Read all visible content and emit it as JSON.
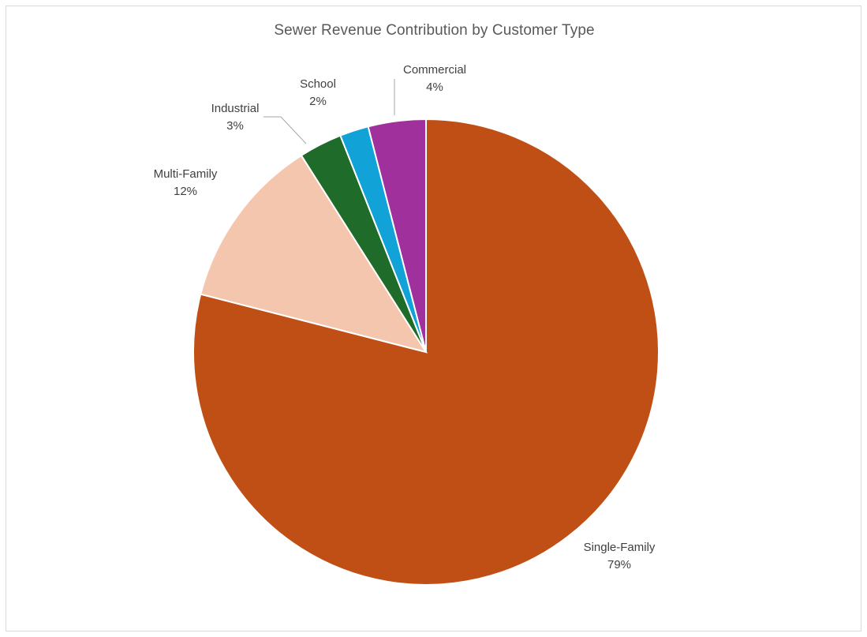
{
  "chart_data": {
    "type": "pie",
    "title": "Sewer Revenue Contribution by Customer Type",
    "categories": [
      "Single-Family",
      "Multi-Family",
      "Industrial",
      "School",
      "Commercial"
    ],
    "values": [
      79,
      12,
      3,
      2,
      4
    ],
    "value_labels": [
      "79%",
      "12%",
      "3%",
      "2%",
      "4%"
    ],
    "colors": [
      "#C04F15",
      "#F5C6AE",
      "#1E6B2A",
      "#11A2D8",
      "#A0309B"
    ],
    "start_angle": "12 o'clock",
    "direction": "clockwise",
    "legend": "none (data labels)"
  }
}
